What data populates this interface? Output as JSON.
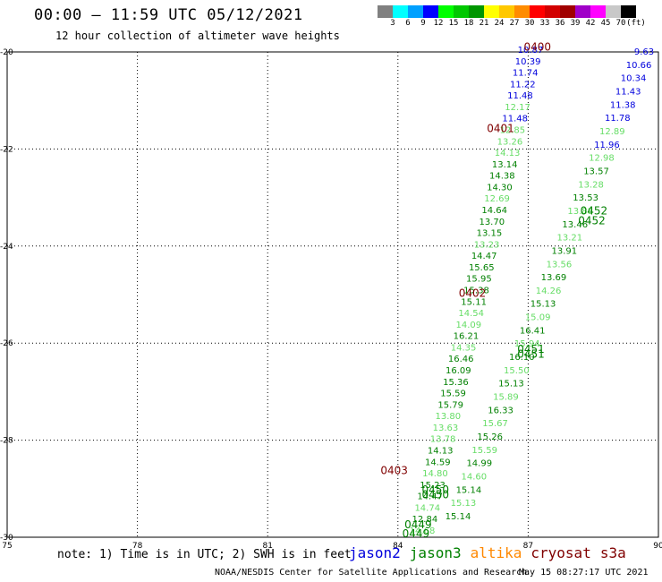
{
  "title": "00:00 – 11:59 UTC 05/12/2021",
  "subtitle": "12 hour collection of altimeter wave heights",
  "colorbar": {
    "colors": [
      "#808080",
      "#00ffff",
      "#00a0ff",
      "#0000ff",
      "#00ff00",
      "#00c800",
      "#009600",
      "#ffff00",
      "#ffc800",
      "#ff8c00",
      "#ff0000",
      "#d20000",
      "#a00000",
      "#a000c8",
      "#ff00ff",
      "#c8c8c8",
      "#000000"
    ],
    "labels": [
      "3",
      "6",
      "9",
      "12",
      "15",
      "18",
      "21",
      "24",
      "27",
      "30",
      "33",
      "36",
      "39",
      "42",
      "45",
      "70"
    ],
    "unit": "(ft)"
  },
  "map": {
    "lon_ticks": [
      "75",
      "78",
      "81",
      "84",
      "87",
      "90"
    ],
    "lat_ticks": [
      "-20",
      "-22",
      "-24",
      "-26",
      "-28",
      "-30"
    ],
    "lon_range": [
      75,
      90
    ],
    "lat_range": [
      -30,
      -20
    ],
    "grid": true
  },
  "colors": {
    "jason2": "#0000dd",
    "jason3": "#008000",
    "altika": "#ff8800",
    "cryosat": "#800000",
    "s3a": "#800000",
    "light": "#66dd66"
  },
  "tracks": {
    "track_a": {
      "values": [
        "10.87",
        "10.39",
        "11.74",
        "11.22",
        "11.48",
        "12.17",
        "11.48",
        "12.85",
        "13.26",
        "14.13",
        "13.14",
        "14.38",
        "14.30",
        "12.69",
        "14.64",
        "13.70",
        "13.15",
        "13.23",
        "14.47",
        "15.65",
        "15.95",
        "15.38",
        "15.11",
        "14.54",
        "14.09",
        "16.21",
        "14.35",
        "16.46",
        "16.09",
        "15.36",
        "15.59",
        "15.79",
        "13.80",
        "13.63",
        "13.78",
        "14.13",
        "14.59",
        "14.80",
        "15.23",
        "14.47",
        "14.74",
        "12.84",
        "14.68"
      ],
      "colors": [
        "jason2",
        "jason2",
        "jason2",
        "jason2",
        "jason2",
        "light",
        "jason2",
        "light",
        "light",
        "light",
        "jason3",
        "jason3",
        "jason3",
        "light",
        "jason3",
        "jason3",
        "jason3",
        "light",
        "jason3",
        "jason3",
        "jason3",
        "jason3",
        "jason3",
        "light",
        "light",
        "jason3",
        "light",
        "jason3",
        "jason3",
        "jason3",
        "jason3",
        "jason3",
        "light",
        "light",
        "light",
        "jason3",
        "jason3",
        "light",
        "jason3",
        "jason3",
        "light",
        "jason3",
        "light"
      ]
    },
    "track_b": {
      "values": [
        "9.63",
        "10.66",
        "10.34",
        "11.43",
        "11.38",
        "11.78",
        "12.89",
        "11.96",
        "12.98",
        "13.57",
        "13.28",
        "13.53",
        "13.88",
        "13.46",
        "13.21",
        "13.91",
        "13.56",
        "13.69",
        "14.26",
        "15.13",
        "15.09",
        "16.41",
        "15.94",
        "16.10",
        "15.50",
        "15.13",
        "15.89",
        "16.33",
        "15.67",
        "15.26",
        "15.59",
        "14.99",
        "14.60",
        "15.14",
        "15.13",
        "15.14"
      ]
    },
    "labels": [
      {
        "text": "0400",
        "lon": 86.9,
        "lat": -19.97,
        "color": "cryosat"
      },
      {
        "text": "0401",
        "lon": 86.05,
        "lat": -21.65,
        "color": "cryosat"
      },
      {
        "text": "0402",
        "lon": 85.4,
        "lat": -25.05,
        "color": "cryosat"
      },
      {
        "text": "0403",
        "lon": 83.6,
        "lat": -28.7,
        "color": "cryosat"
      },
      {
        "text": "0452",
        "lon": 88.2,
        "lat": -23.35,
        "color": "jason3"
      },
      {
        "text": "0452",
        "lon": 88.15,
        "lat": -23.55,
        "color": "jason3"
      },
      {
        "text": "0451",
        "lon": 86.75,
        "lat": -26.2,
        "color": "jason3"
      },
      {
        "text": "0451",
        "lon": 86.75,
        "lat": -26.3,
        "color": "jason3"
      },
      {
        "text": "0450",
        "lon": 84.55,
        "lat": -29.1,
        "color": "jason3"
      },
      {
        "text": "0450",
        "lon": 84.55,
        "lat": -29.2,
        "color": "jason3"
      },
      {
        "text": "0449",
        "lon": 84.15,
        "lat": -29.82,
        "color": "jason3"
      },
      {
        "text": "0449",
        "lon": 84.1,
        "lat": -30.0,
        "color": "jason3"
      }
    ]
  },
  "note": "note: 1) Time is in UTC; 2) SWH is in feet",
  "legend": {
    "jason2": "jason2",
    "jason3": "jason3",
    "altika": "altika",
    "cryosat": "cryosat",
    "s3a": "s3a"
  },
  "credit": "NOAA/NESDIS Center for Satellite Applications and Research",
  "stamp": "May 15 08:27:17 UTC 2021"
}
